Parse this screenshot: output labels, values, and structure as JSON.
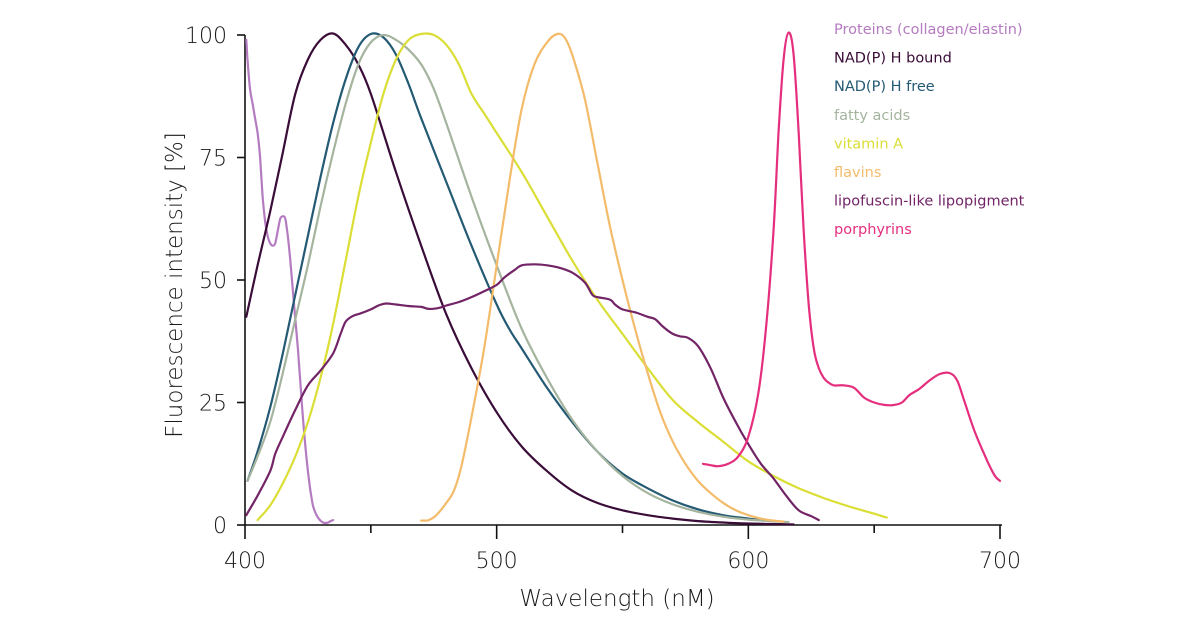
{
  "chart_data": {
    "type": "line",
    "xlabel": "Wavelength (nM)",
    "ylabel": "Fluorescence intensity [%]",
    "xlim": [
      400,
      700
    ],
    "ylim": [
      0,
      100
    ],
    "x_ticks": [
      400,
      500,
      600,
      700
    ],
    "x_minor_ticks": [
      450,
      550,
      650
    ],
    "y_ticks": [
      0,
      25,
      50,
      75,
      100
    ],
    "grid": false,
    "legend_placement": "top-right",
    "series": [
      {
        "name": "Proteins (collagen/elastin)",
        "color": "#b57bc0",
        "points": [
          [
            400.5,
            99
          ],
          [
            401,
            95
          ],
          [
            402,
            89
          ],
          [
            403,
            86
          ],
          [
            404,
            83
          ],
          [
            405,
            80
          ],
          [
            406,
            75
          ],
          [
            407,
            67
          ],
          [
            408,
            62
          ],
          [
            409,
            59
          ],
          [
            410,
            57.5
          ],
          [
            411,
            57
          ],
          [
            412,
            57.5
          ],
          [
            413,
            60
          ],
          [
            414,
            62.5
          ],
          [
            415,
            63
          ],
          [
            416,
            62.5
          ],
          [
            417,
            59
          ],
          [
            418,
            54
          ],
          [
            419,
            48
          ],
          [
            420,
            42
          ],
          [
            421,
            36
          ],
          [
            422,
            29
          ],
          [
            423,
            22
          ],
          [
            424,
            16
          ],
          [
            425,
            11
          ],
          [
            426,
            7
          ],
          [
            427,
            4
          ],
          [
            428,
            2.5
          ],
          [
            429,
            1.5
          ],
          [
            430,
            0.9
          ],
          [
            431,
            0.5
          ],
          [
            432,
            0.4
          ],
          [
            433,
            0.5
          ],
          [
            434,
            0.8
          ],
          [
            435,
            1
          ]
        ]
      },
      {
        "name": "NAD(P) H bound",
        "color": "#3a0c38",
        "points": [
          [
            400.5,
            42.5
          ],
          [
            405,
            53
          ],
          [
            410,
            64
          ],
          [
            415,
            76
          ],
          [
            420,
            88
          ],
          [
            425,
            95
          ],
          [
            430,
            99
          ],
          [
            435,
            100.3
          ],
          [
            440,
            98
          ],
          [
            445,
            94
          ],
          [
            450,
            88
          ],
          [
            460,
            72
          ],
          [
            470,
            57
          ],
          [
            480,
            43
          ],
          [
            490,
            32
          ],
          [
            500,
            23
          ],
          [
            510,
            16
          ],
          [
            520,
            11
          ],
          [
            530,
            7
          ],
          [
            540,
            4.5
          ],
          [
            550,
            3
          ],
          [
            560,
            2
          ],
          [
            570,
            1.3
          ],
          [
            580,
            0.8
          ],
          [
            590,
            0.5
          ],
          [
            600,
            0.3
          ],
          [
            610,
            0.2
          ],
          [
            618,
            0.1
          ]
        ]
      },
      {
        "name": "NAD(P) H free",
        "color": "#245a73",
        "points": [
          [
            401,
            9
          ],
          [
            405,
            15
          ],
          [
            410,
            24
          ],
          [
            415,
            35
          ],
          [
            420,
            47
          ],
          [
            425,
            59
          ],
          [
            430,
            71
          ],
          [
            435,
            82
          ],
          [
            440,
            91
          ],
          [
            445,
            97.5
          ],
          [
            450,
            100.2
          ],
          [
            455,
            99.5
          ],
          [
            460,
            96
          ],
          [
            465,
            90
          ],
          [
            470,
            83
          ],
          [
            480,
            70
          ],
          [
            490,
            57
          ],
          [
            500,
            45
          ],
          [
            505,
            40
          ],
          [
            510,
            36
          ],
          [
            520,
            28
          ],
          [
            530,
            21
          ],
          [
            540,
            15
          ],
          [
            550,
            10.5
          ],
          [
            560,
            7.5
          ],
          [
            570,
            5
          ],
          [
            580,
            3.2
          ],
          [
            590,
            2
          ],
          [
            600,
            1.3
          ],
          [
            606,
            0.9
          ]
        ]
      },
      {
        "name": "fatty acids",
        "color": "#a5b49e",
        "points": [
          [
            401,
            9
          ],
          [
            405,
            14
          ],
          [
            410,
            21
          ],
          [
            415,
            31
          ],
          [
            420,
            42
          ],
          [
            425,
            53
          ],
          [
            430,
            65
          ],
          [
            435,
            76
          ],
          [
            440,
            86
          ],
          [
            445,
            94
          ],
          [
            450,
            98.5
          ],
          [
            455,
            100
          ],
          [
            460,
            99
          ],
          [
            465,
            97
          ],
          [
            470,
            94
          ],
          [
            475,
            89
          ],
          [
            480,
            82
          ],
          [
            490,
            67
          ],
          [
            500,
            53
          ],
          [
            510,
            40
          ],
          [
            520,
            30
          ],
          [
            530,
            21.5
          ],
          [
            540,
            15
          ],
          [
            550,
            10
          ],
          [
            560,
            6.5
          ],
          [
            570,
            4.2
          ],
          [
            580,
            2.7
          ],
          [
            590,
            1.7
          ],
          [
            600,
            1.1
          ],
          [
            610,
            0.8
          ],
          [
            616,
            0.6
          ]
        ]
      },
      {
        "name": "vitamin A",
        "color": "#dade35",
        "points": [
          [
            405,
            1
          ],
          [
            410,
            4
          ],
          [
            415,
            8.5
          ],
          [
            420,
            14
          ],
          [
            425,
            21
          ],
          [
            430,
            30
          ],
          [
            435,
            41
          ],
          [
            440,
            54
          ],
          [
            445,
            67
          ],
          [
            450,
            78
          ],
          [
            455,
            88
          ],
          [
            460,
            95
          ],
          [
            465,
            99
          ],
          [
            470,
            100.2
          ],
          [
            475,
            100
          ],
          [
            480,
            98
          ],
          [
            485,
            94
          ],
          [
            490,
            88
          ],
          [
            495,
            84
          ],
          [
            500,
            80
          ],
          [
            510,
            72
          ],
          [
            520,
            63
          ],
          [
            530,
            54
          ],
          [
            540,
            46
          ],
          [
            550,
            39
          ],
          [
            560,
            32
          ],
          [
            570,
            25.5
          ],
          [
            580,
            21
          ],
          [
            590,
            17
          ],
          [
            600,
            13
          ],
          [
            610,
            10
          ],
          [
            620,
            7.5
          ],
          [
            630,
            5.5
          ],
          [
            640,
            3.8
          ],
          [
            650,
            2.3
          ],
          [
            655,
            1.5
          ]
        ]
      },
      {
        "name": "flavins",
        "color": "#f3bb6a",
        "points": [
          [
            470,
            0.9
          ],
          [
            473,
            1
          ],
          [
            476,
            2
          ],
          [
            480,
            4.5
          ],
          [
            483,
            7
          ],
          [
            486,
            12
          ],
          [
            490,
            22
          ],
          [
            495,
            36
          ],
          [
            500,
            53
          ],
          [
            505,
            70
          ],
          [
            510,
            85
          ],
          [
            515,
            94
          ],
          [
            520,
            98.5
          ],
          [
            524,
            100.2
          ],
          [
            527,
            99.5
          ],
          [
            530,
            96
          ],
          [
            535,
            87
          ],
          [
            540,
            74
          ],
          [
            545,
            61
          ],
          [
            550,
            50
          ],
          [
            555,
            40
          ],
          [
            560,
            31
          ],
          [
            565,
            23
          ],
          [
            570,
            17
          ],
          [
            575,
            12.5
          ],
          [
            580,
            9
          ],
          [
            585,
            6.5
          ],
          [
            590,
            4.5
          ],
          [
            595,
            3
          ],
          [
            600,
            2
          ],
          [
            605,
            1.3
          ],
          [
            610,
            0.9
          ],
          [
            614,
            0.7
          ]
        ]
      },
      {
        "name": "lipofuscin-like lipopigment",
        "color": "#722466",
        "points": [
          [
            400.5,
            2
          ],
          [
            405,
            6
          ],
          [
            410,
            11
          ],
          [
            412,
            14.5
          ],
          [
            415,
            18
          ],
          [
            420,
            23.5
          ],
          [
            425,
            28.5
          ],
          [
            430,
            31.5
          ],
          [
            435,
            35
          ],
          [
            438,
            39
          ],
          [
            440,
            41.5
          ],
          [
            443,
            42.7
          ],
          [
            446,
            43.2
          ],
          [
            450,
            44
          ],
          [
            453,
            44.8
          ],
          [
            456,
            45.2
          ],
          [
            460,
            45
          ],
          [
            465,
            44.7
          ],
          [
            470,
            44.5
          ],
          [
            473,
            44.1
          ],
          [
            477,
            44.3
          ],
          [
            480,
            44.8
          ],
          [
            485,
            45.5
          ],
          [
            490,
            46.5
          ],
          [
            495,
            47.7
          ],
          [
            500,
            49
          ],
          [
            503,
            50.5
          ],
          [
            507,
            52
          ],
          [
            510,
            53
          ],
          [
            515,
            53.2
          ],
          [
            520,
            53
          ],
          [
            525,
            52.5
          ],
          [
            530,
            51.5
          ],
          [
            535,
            49.5
          ],
          [
            538,
            47
          ],
          [
            540,
            46.5
          ],
          [
            545,
            46
          ],
          [
            547,
            45
          ],
          [
            550,
            44
          ],
          [
            555,
            43.4
          ],
          [
            560,
            42.5
          ],
          [
            563,
            42
          ],
          [
            566,
            40.5
          ],
          [
            570,
            39
          ],
          [
            573,
            38.5
          ],
          [
            576,
            38.2
          ],
          [
            580,
            36.5
          ],
          [
            585,
            32
          ],
          [
            590,
            26
          ],
          [
            595,
            21
          ],
          [
            600,
            16.5
          ],
          [
            605,
            12.5
          ],
          [
            610,
            9.5
          ],
          [
            615,
            6
          ],
          [
            620,
            3
          ],
          [
            625,
            1.8
          ],
          [
            628,
            1
          ]
        ]
      },
      {
        "name": "porphyrins",
        "color": "#e52e7e",
        "points": [
          [
            582,
            12.5
          ],
          [
            585,
            12.2
          ],
          [
            588,
            12
          ],
          [
            592,
            12.5
          ],
          [
            596,
            14
          ],
          [
            600,
            18
          ],
          [
            604,
            27
          ],
          [
            607,
            40
          ],
          [
            610,
            60
          ],
          [
            612,
            80
          ],
          [
            614,
            95
          ],
          [
            616,
            100.5
          ],
          [
            618,
            96
          ],
          [
            620,
            80
          ],
          [
            622,
            60
          ],
          [
            624,
            45
          ],
          [
            626,
            36
          ],
          [
            628,
            32
          ],
          [
            630,
            30
          ],
          [
            632,
            29
          ],
          [
            634,
            28.5
          ],
          [
            638,
            28.5
          ],
          [
            642,
            28
          ],
          [
            646,
            26
          ],
          [
            650,
            25
          ],
          [
            654,
            24.5
          ],
          [
            658,
            24.5
          ],
          [
            661,
            25
          ],
          [
            664,
            26.5
          ],
          [
            668,
            27.8
          ],
          [
            672,
            29.5
          ],
          [
            676,
            30.8
          ],
          [
            680,
            31
          ],
          [
            683,
            29.5
          ],
          [
            686,
            25
          ],
          [
            690,
            19
          ],
          [
            695,
            13
          ],
          [
            698,
            10
          ],
          [
            700,
            9
          ]
        ]
      }
    ]
  }
}
